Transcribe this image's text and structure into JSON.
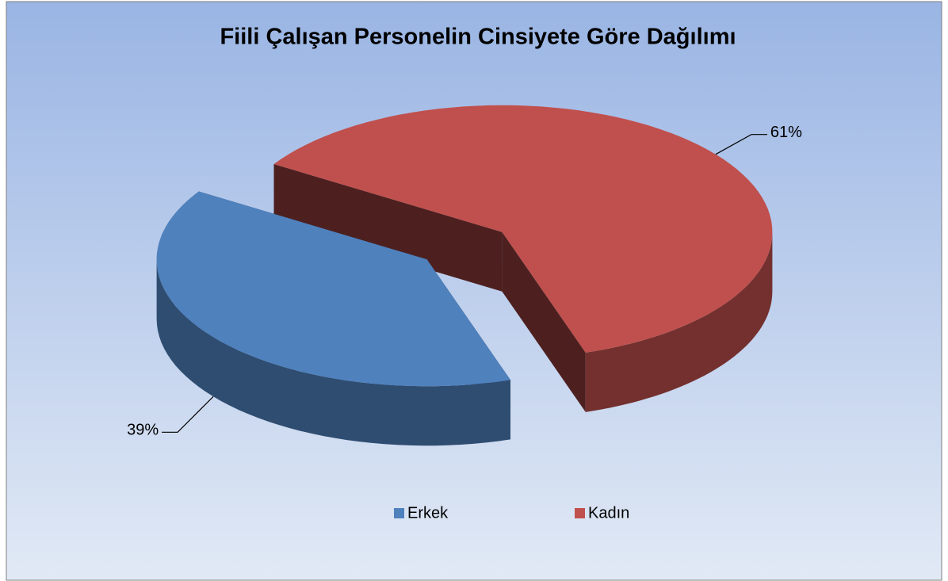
{
  "chart_data": {
    "type": "pie",
    "title": "Fiili Çalışan Personelin Cinsiyete Göre Dağılımı",
    "categories": [
      "Erkek",
      "Kadın"
    ],
    "values": [
      39,
      61
    ],
    "value_labels": [
      "39%",
      "61%"
    ],
    "colors": [
      "#4f81bd",
      "#c0504d"
    ],
    "legend": "bottom"
  }
}
